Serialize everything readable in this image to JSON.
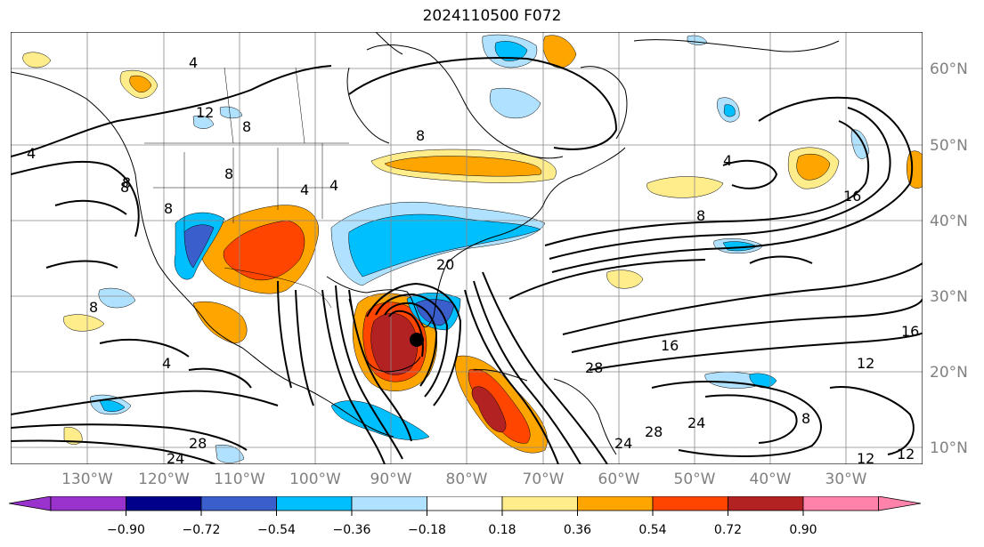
{
  "title": "2024110500 F072",
  "lon_labels": [
    "130°W",
    "120°W",
    "110°W",
    "100°W",
    "90°W",
    "80°W",
    "70°W",
    "60°W",
    "50°W",
    "40°W",
    "30°W"
  ],
  "lat_labels": [
    "60°N",
    "50°N",
    "40°N",
    "30°N",
    "20°N",
    "10°N"
  ],
  "contour_labels": [
    "4",
    "12",
    "8",
    "8",
    "8",
    "4",
    "4",
    "8",
    "8",
    "20",
    "4",
    "12",
    "16",
    "8",
    "16",
    "12",
    "16",
    "28",
    "28",
    "24",
    "28",
    "24",
    "24",
    "8",
    "12",
    "4",
    "8",
    "8",
    "4"
  ],
  "colorbar": {
    "ticks": [
      "−0.90",
      "−0.72",
      "−0.54",
      "−0.36",
      "−0.18",
      "0.18",
      "0.36",
      "0.54",
      "0.72",
      "0.90"
    ],
    "colors": [
      "#9a32cd",
      "#00008b",
      "#3a5fcd",
      "#00bfff",
      "#b0e2ff",
      "#ffffff",
      "#ffec8b",
      "#ffa500",
      "#ff4500",
      "#b22222",
      "#ff82ab"
    ]
  },
  "colors": {
    "frame": "#000000",
    "grid": "#888888",
    "label_grey": "#808080"
  }
}
